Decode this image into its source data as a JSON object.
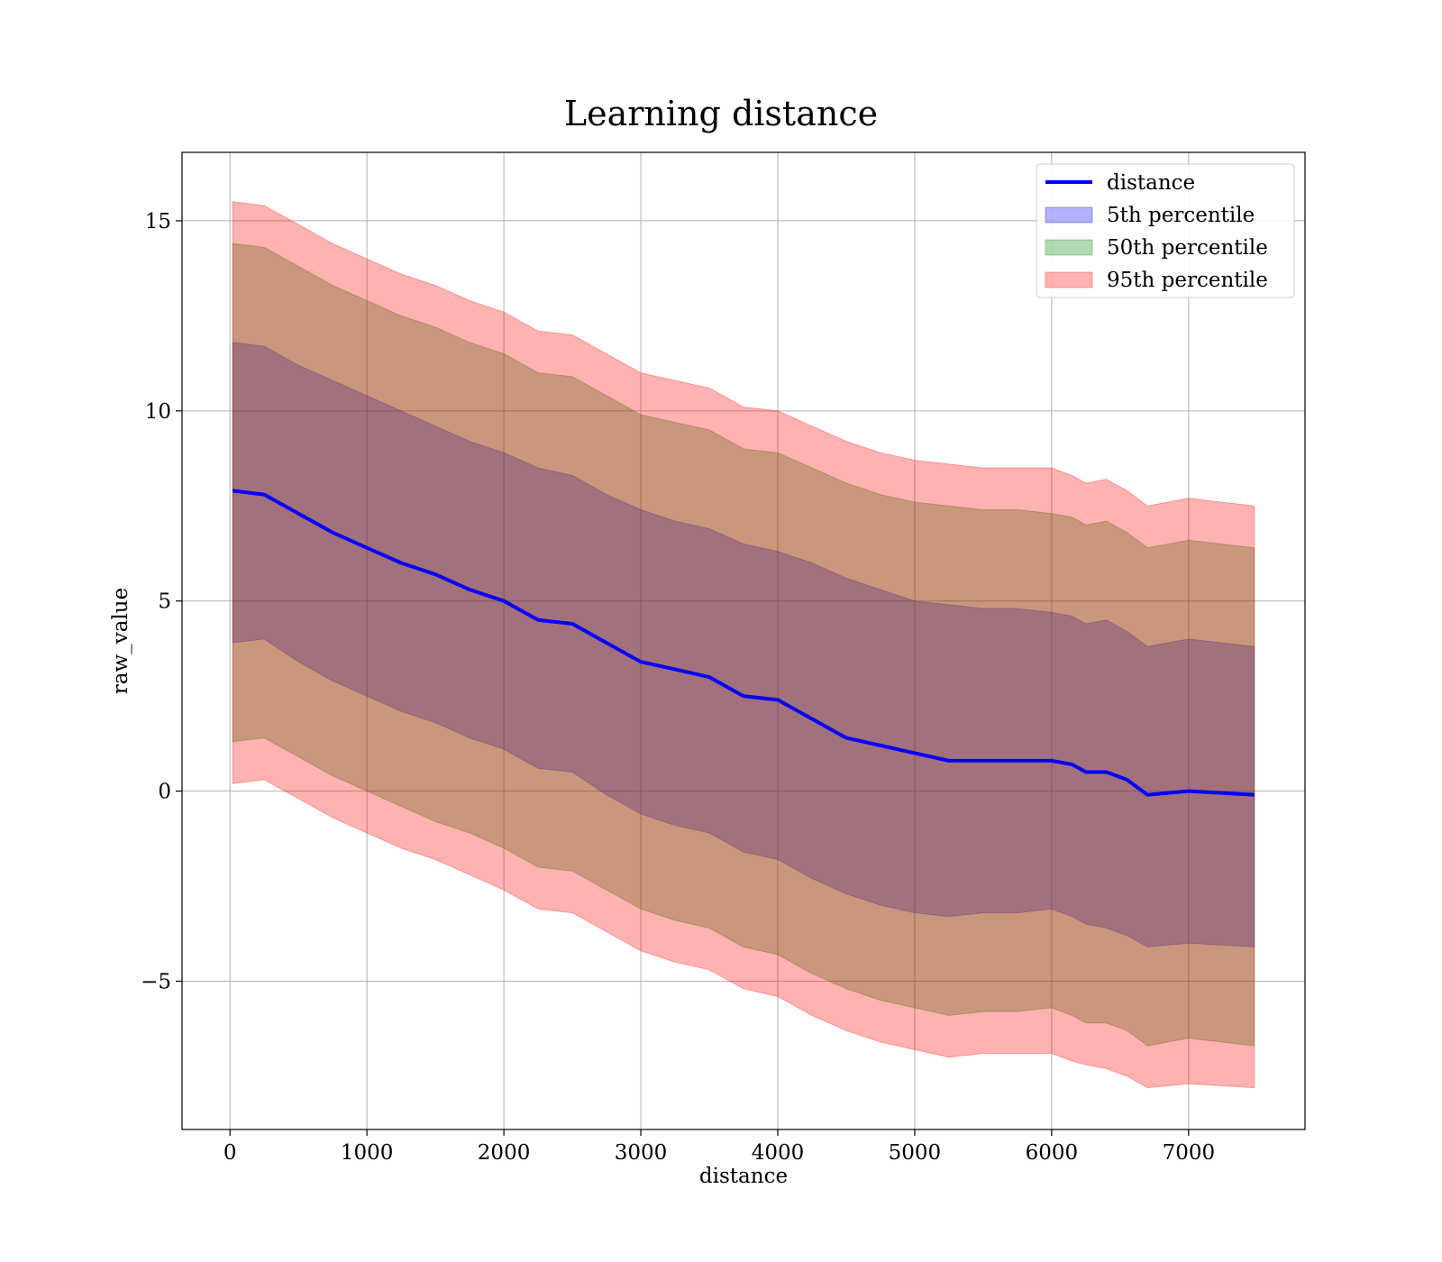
{
  "chart_data": {
    "type": "line",
    "title": "Learning distance",
    "xlabel": "distance",
    "ylabel": "raw_value",
    "xlim": [
      -350,
      7850
    ],
    "ylim": [
      -8.9,
      16.8
    ],
    "xticks": [
      0,
      1000,
      2000,
      3000,
      4000,
      5000,
      6000,
      7000
    ],
    "xtick_labels": [
      "0",
      "1000",
      "2000",
      "3000",
      "4000",
      "5000",
      "6000",
      "7000"
    ],
    "yticks": [
      -5,
      0,
      5,
      10,
      15
    ],
    "ytick_labels": [
      "−5",
      "0",
      "5",
      "10",
      "15"
    ],
    "grid": true,
    "legend_position": "top-right",
    "x": [
      20,
      250,
      500,
      750,
      1000,
      1250,
      1500,
      1750,
      2000,
      2250,
      2500,
      2750,
      3000,
      3250,
      3500,
      3750,
      4000,
      4250,
      4500,
      4750,
      5000,
      5250,
      5500,
      5750,
      6000,
      6150,
      6250,
      6400,
      6550,
      6700,
      7000,
      7480
    ],
    "series": [
      {
        "name": "distance",
        "kind": "line",
        "color": "#0000ff",
        "values": [
          7.9,
          7.8,
          7.3,
          6.8,
          6.4,
          6.0,
          5.7,
          5.3,
          5.0,
          4.5,
          4.4,
          3.9,
          3.4,
          3.2,
          3.0,
          2.5,
          2.4,
          1.9,
          1.4,
          1.2,
          1.0,
          0.8,
          0.8,
          0.8,
          0.8,
          0.7,
          0.5,
          0.5,
          0.3,
          -0.1,
          0.0,
          -0.1
        ]
      },
      {
        "name": "5th percentile",
        "kind": "band",
        "color": "#0000ff",
        "lower": [
          3.9,
          4.0,
          3.4,
          2.9,
          2.5,
          2.1,
          1.8,
          1.4,
          1.1,
          0.6,
          0.5,
          -0.1,
          -0.6,
          -0.9,
          -1.1,
          -1.6,
          -1.8,
          -2.3,
          -2.7,
          -3.0,
          -3.2,
          -3.3,
          -3.2,
          -3.2,
          -3.1,
          -3.3,
          -3.5,
          -3.6,
          -3.8,
          -4.1,
          -4.0,
          -4.1
        ],
        "upper": [
          11.8,
          11.7,
          11.2,
          10.8,
          10.4,
          10.0,
          9.6,
          9.2,
          8.9,
          8.5,
          8.3,
          7.8,
          7.4,
          7.1,
          6.9,
          6.5,
          6.3,
          6.0,
          5.6,
          5.3,
          5.0,
          4.9,
          4.8,
          4.8,
          4.7,
          4.6,
          4.4,
          4.5,
          4.2,
          3.8,
          4.0,
          3.8
        ]
      },
      {
        "name": "50th percentile",
        "kind": "band",
        "color": "#008000",
        "lower": [
          1.3,
          1.4,
          0.9,
          0.4,
          0.0,
          -0.4,
          -0.8,
          -1.1,
          -1.5,
          -2.0,
          -2.1,
          -2.6,
          -3.1,
          -3.4,
          -3.6,
          -4.1,
          -4.3,
          -4.8,
          -5.2,
          -5.5,
          -5.7,
          -5.9,
          -5.8,
          -5.8,
          -5.7,
          -5.9,
          -6.1,
          -6.1,
          -6.3,
          -6.7,
          -6.5,
          -6.7
        ],
        "upper": [
          14.4,
          14.3,
          13.8,
          13.3,
          12.9,
          12.5,
          12.2,
          11.8,
          11.5,
          11.0,
          10.9,
          10.4,
          9.9,
          9.7,
          9.5,
          9.0,
          8.9,
          8.5,
          8.1,
          7.8,
          7.6,
          7.5,
          7.4,
          7.4,
          7.3,
          7.2,
          7.0,
          7.1,
          6.8,
          6.4,
          6.6,
          6.4
        ]
      },
      {
        "name": "95th percentile",
        "kind": "band",
        "color": "#ff0000",
        "lower": [
          0.2,
          0.3,
          -0.2,
          -0.7,
          -1.1,
          -1.5,
          -1.8,
          -2.2,
          -2.6,
          -3.1,
          -3.2,
          -3.7,
          -4.2,
          -4.5,
          -4.7,
          -5.2,
          -5.4,
          -5.9,
          -6.3,
          -6.6,
          -6.8,
          -7.0,
          -6.9,
          -6.9,
          -6.9,
          -7.1,
          -7.2,
          -7.3,
          -7.5,
          -7.8,
          -7.7,
          -7.8
        ],
        "upper": [
          15.5,
          15.4,
          14.9,
          14.4,
          14.0,
          13.6,
          13.3,
          12.9,
          12.6,
          12.1,
          12.0,
          11.5,
          11.0,
          10.8,
          10.6,
          10.1,
          10.0,
          9.6,
          9.2,
          8.9,
          8.7,
          8.6,
          8.5,
          8.5,
          8.5,
          8.3,
          8.1,
          8.2,
          7.9,
          7.5,
          7.7,
          7.5
        ]
      }
    ]
  }
}
